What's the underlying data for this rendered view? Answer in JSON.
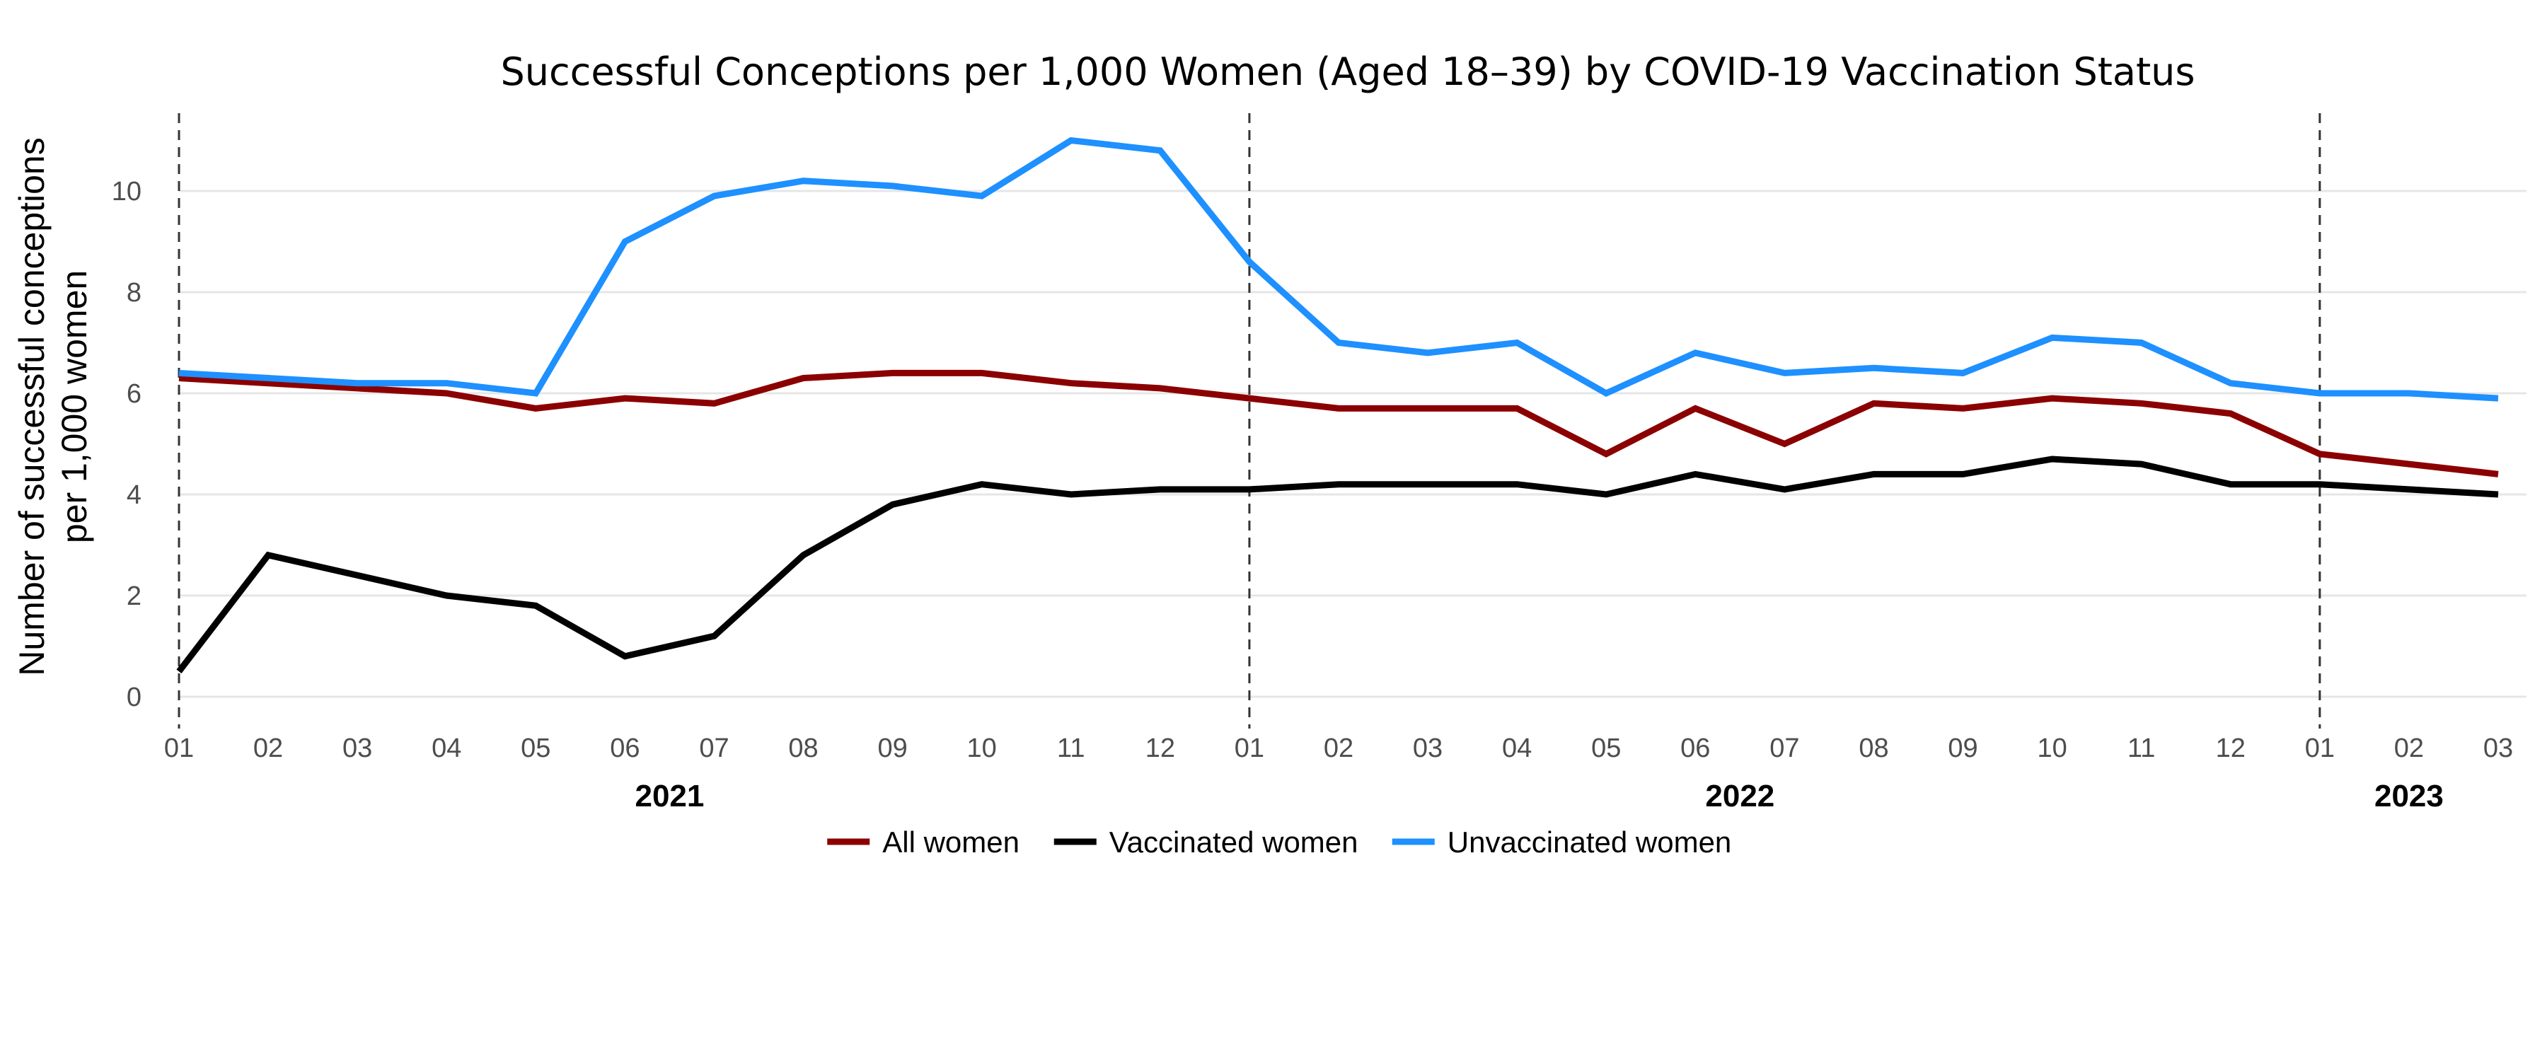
{
  "chart_data": {
    "type": "line",
    "title": "Successful Conceptions per 1,000 Women (Aged 18–39) by COVID-19 Vaccination Status",
    "ylabel_lines": [
      "Number of successful conceptions",
      "per 1,000 women"
    ],
    "xlabel": "",
    "ylim": [
      0,
      11.5
    ],
    "yticks": [
      0,
      2,
      4,
      6,
      8,
      10
    ],
    "grid": true,
    "legend_position": "bottom",
    "x": [
      "2021-01",
      "2021-02",
      "2021-03",
      "2021-04",
      "2021-05",
      "2021-06",
      "2021-07",
      "2021-08",
      "2021-09",
      "2021-10",
      "2021-11",
      "2021-12",
      "2022-01",
      "2022-02",
      "2022-03",
      "2022-04",
      "2022-05",
      "2022-06",
      "2022-07",
      "2022-08",
      "2022-09",
      "2022-10",
      "2022-11",
      "2022-12",
      "2023-01",
      "2023-02",
      "2023-03"
    ],
    "x_tick_labels": [
      "01",
      "02",
      "03",
      "04",
      "05",
      "06",
      "07",
      "08",
      "09",
      "10",
      "11",
      "12",
      "01",
      "02",
      "03",
      "04",
      "05",
      "06",
      "07",
      "08",
      "09",
      "10",
      "11",
      "12",
      "01",
      "02",
      "03"
    ],
    "year_labels": [
      {
        "label": "2021",
        "center_month": "2021-06.5"
      },
      {
        "label": "2022",
        "center_month": "2022-06.5"
      },
      {
        "label": "2023",
        "center_month": "2023-02"
      }
    ],
    "vlines": [
      "2021-01",
      "2022-01",
      "2023-01"
    ],
    "series": [
      {
        "name": "All women",
        "color": "#8B0000",
        "values": [
          6.3,
          6.2,
          6.1,
          6.0,
          5.7,
          5.9,
          5.8,
          6.3,
          6.4,
          6.4,
          6.2,
          6.1,
          5.9,
          5.7,
          5.7,
          5.7,
          4.8,
          5.7,
          5.0,
          5.8,
          5.7,
          5.9,
          5.8,
          5.6,
          4.8,
          4.6,
          4.4
        ]
      },
      {
        "name": "Vaccinated women",
        "color": "#000000",
        "values": [
          0.5,
          2.8,
          2.4,
          2.0,
          1.8,
          0.8,
          1.2,
          2.8,
          3.8,
          4.2,
          4.0,
          4.1,
          4.1,
          4.2,
          4.2,
          4.2,
          4.0,
          4.4,
          4.1,
          4.4,
          4.4,
          4.7,
          4.6,
          4.2,
          4.2,
          4.1,
          4.0
        ]
      },
      {
        "name": "Unvaccinated women",
        "color": "#1E90FF",
        "values": [
          6.4,
          6.3,
          6.2,
          6.2,
          6.0,
          9.0,
          9.9,
          10.2,
          10.1,
          9.9,
          11.0,
          10.8,
          8.6,
          7.0,
          6.8,
          7.0,
          6.0,
          6.8,
          6.4,
          6.5,
          6.4,
          7.1,
          7.0,
          6.2,
          6.0,
          6.0,
          5.9
        ]
      }
    ]
  }
}
